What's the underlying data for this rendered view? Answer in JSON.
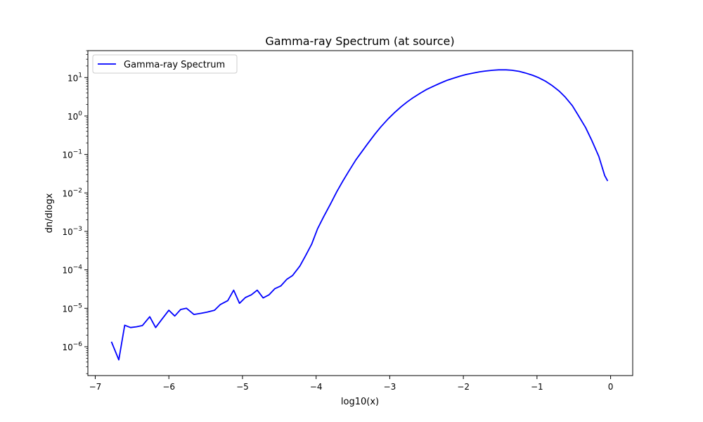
{
  "chart_data": {
    "type": "line",
    "title": "Gamma-ray Spectrum (at source)",
    "xlabel": "log10(x)",
    "ylabel": "dn/dlogx",
    "xlim": [
      -7.1,
      0.3
    ],
    "ylim_log10": [
      -6.75,
      1.7
    ],
    "y_scale": "log",
    "grid": false,
    "legend_placement": "upper-left",
    "x_ticks": [
      -7,
      -6,
      -5,
      -4,
      -3,
      -2,
      -1,
      0
    ],
    "x_tick_labels": [
      "−7",
      "−6",
      "−5",
      "−4",
      "−3",
      "−2",
      "−1",
      "0"
    ],
    "y_ticks_log10": [
      -6,
      -5,
      -4,
      -3,
      -2,
      -1,
      0,
      1
    ],
    "y_tick_bases": [
      "10",
      "10",
      "10",
      "10",
      "10",
      "10",
      "10",
      "10"
    ],
    "y_tick_exponents": [
      "−6",
      "−5",
      "−4",
      "−3",
      "−2",
      "−1",
      "0",
      "1"
    ],
    "series": [
      {
        "name": "Gamma-ray Spectrum",
        "color": "#0000ff",
        "x": [
          -6.78,
          -6.68,
          -6.6,
          -6.52,
          -6.44,
          -6.36,
          -6.26,
          -6.18,
          -6.1,
          -6.0,
          -5.92,
          -5.84,
          -5.76,
          -5.66,
          -5.56,
          -5.48,
          -5.38,
          -5.3,
          -5.2,
          -5.12,
          -5.04,
          -4.96,
          -4.88,
          -4.8,
          -4.72,
          -4.64,
          -4.56,
          -4.48,
          -4.4,
          -4.32,
          -4.22,
          -4.14,
          -4.06,
          -3.98,
          -3.9,
          -3.8,
          -3.72,
          -3.64,
          -3.56,
          -3.46,
          -3.38,
          -3.3,
          -3.2,
          -3.12,
          -3.02,
          -2.94,
          -2.84,
          -2.76,
          -2.68,
          -2.58,
          -2.5,
          -2.4,
          -2.32,
          -2.22,
          -2.14,
          -2.04,
          -1.96,
          -1.86,
          -1.78,
          -1.7,
          -1.6,
          -1.52,
          -1.42,
          -1.34,
          -1.24,
          -1.16,
          -1.06,
          -0.98,
          -0.88,
          -0.8,
          -0.7,
          -0.62,
          -0.52,
          -0.44,
          -0.34,
          -0.26,
          -0.16,
          -0.08,
          -0.04
        ],
        "y_log10": [
          -5.87,
          -6.34,
          -5.44,
          -5.5,
          -5.48,
          -5.45,
          -5.22,
          -5.5,
          -5.3,
          -5.05,
          -5.2,
          -5.03,
          -5.0,
          -5.16,
          -5.13,
          -5.1,
          -5.05,
          -4.9,
          -4.8,
          -4.53,
          -4.87,
          -4.72,
          -4.65,
          -4.53,
          -4.73,
          -4.65,
          -4.49,
          -4.42,
          -4.25,
          -4.15,
          -3.9,
          -3.62,
          -3.33,
          -2.93,
          -2.63,
          -2.27,
          -1.97,
          -1.7,
          -1.45,
          -1.14,
          -0.93,
          -0.72,
          -0.47,
          -0.28,
          -0.07,
          0.08,
          0.25,
          0.37,
          0.48,
          0.6,
          0.69,
          0.78,
          0.85,
          0.93,
          0.98,
          1.04,
          1.08,
          1.12,
          1.15,
          1.17,
          1.19,
          1.2,
          1.2,
          1.19,
          1.16,
          1.12,
          1.06,
          1.0,
          0.9,
          0.8,
          0.65,
          0.5,
          0.27,
          0.02,
          -0.3,
          -0.62,
          -1.05,
          -1.55,
          -1.69
        ]
      }
    ]
  }
}
